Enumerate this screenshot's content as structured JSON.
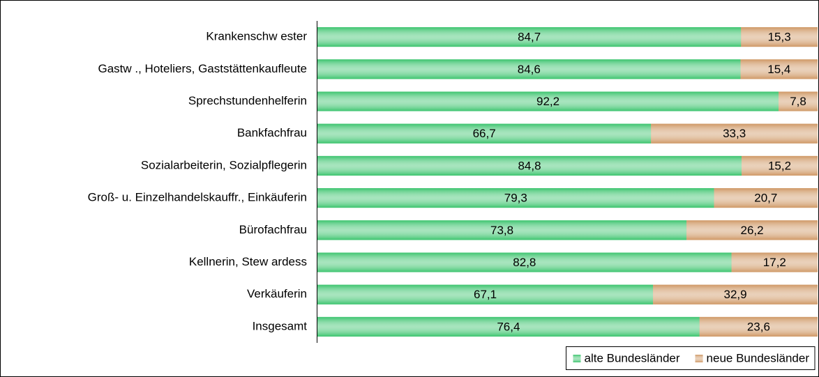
{
  "chart_data": {
    "type": "stacked-bar",
    "orientation": "horizontal",
    "categories": [
      "Krankenschw ester",
      "Gastw ., Hoteliers, Gaststättenkaufleute",
      "Sprechstundenhelferin",
      "Bankfachfrau",
      "Sozialarbeiterin, Sozialpflegerin",
      "Groß- u. Einzelhandelskauffr., Einkäuferin",
      "Bürofachfrau",
      "Kellnerin, Stew ardess",
      "Verkäuferin",
      "Insgesamt"
    ],
    "series": [
      {
        "name": "alte Bundesländer",
        "color": "#3cc46e",
        "values": [
          84.7,
          84.6,
          92.2,
          66.7,
          84.8,
          79.3,
          73.8,
          82.8,
          67.1,
          76.4
        ],
        "value_labels": [
          "84,7",
          "84,6",
          "92,2",
          "66,7",
          "84,8",
          "79,3",
          "73,8",
          "82,8",
          "67,1",
          "76,4"
        ]
      },
      {
        "name": "neue Bundesländer",
        "color": "#cf9865",
        "values": [
          15.3,
          15.4,
          7.8,
          33.3,
          15.2,
          20.7,
          26.2,
          17.2,
          32.9,
          23.6
        ],
        "value_labels": [
          "15,3",
          "15,4",
          "7,8",
          "33,3",
          "15,2",
          "20,7",
          "26,2",
          "17,2",
          "32,9",
          "23,6"
        ]
      }
    ],
    "xlim": [
      0,
      100
    ],
    "legend": "bottom-right"
  }
}
